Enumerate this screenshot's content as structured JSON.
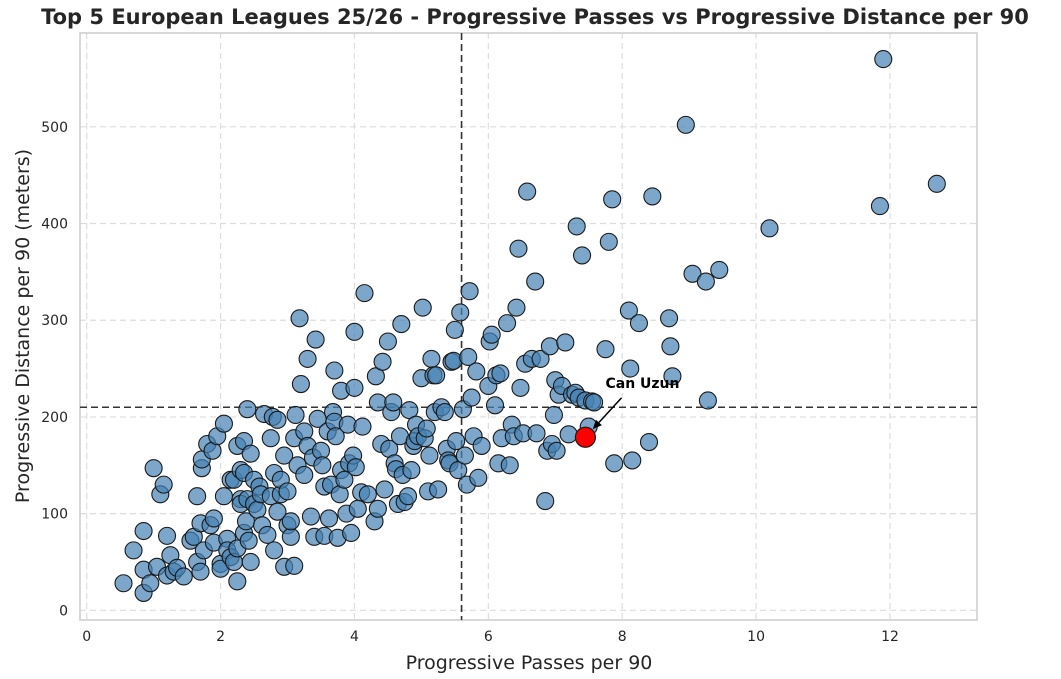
{
  "chart_data": {
    "type": "scatter",
    "title": "Top 5 European Leagues 25/26 - Progressive Passes vs Progressive Distance per 90",
    "xlabel": "Progressive Passes per 90",
    "ylabel": "Progressive Distance per 90 (meters)",
    "xlim": [
      -0.1,
      13.3
    ],
    "ylim": [
      -10,
      597
    ],
    "xticks": [
      0,
      2,
      4,
      6,
      8,
      10,
      12
    ],
    "yticks": [
      0,
      100,
      200,
      300,
      400,
      500
    ],
    "xtick_labels": [
      "0",
      "2",
      "4",
      "6",
      "8",
      "10",
      "12"
    ],
    "ytick_labels": [
      "0",
      "100",
      "200",
      "300",
      "400",
      "500"
    ],
    "grid": true,
    "reference_lines": {
      "x_mean": 5.6,
      "y_mean": 210
    },
    "colors": {
      "points": "#4682b4",
      "point_edge": "#1a1a1a",
      "highlight": "#ff0000",
      "reference": "#333333",
      "grid": "#dddddd"
    },
    "highlight": {
      "label": "Can Uzun",
      "x": 7.45,
      "y": 179,
      "label_x": 7.75,
      "label_y": 230
    },
    "points": [
      [
        0.55,
        28
      ],
      [
        0.7,
        62
      ],
      [
        0.85,
        82
      ],
      [
        0.85,
        42
      ],
      [
        0.85,
        18
      ],
      [
        0.95,
        28
      ],
      [
        1.0,
        147
      ],
      [
        1.05,
        45
      ],
      [
        1.1,
        120
      ],
      [
        1.15,
        130
      ],
      [
        1.2,
        77
      ],
      [
        1.2,
        36
      ],
      [
        1.25,
        57
      ],
      [
        1.3,
        40
      ],
      [
        1.35,
        44
      ],
      [
        1.45,
        35
      ],
      [
        1.55,
        72
      ],
      [
        1.6,
        76
      ],
      [
        1.65,
        50
      ],
      [
        1.65,
        118
      ],
      [
        1.7,
        90
      ],
      [
        1.7,
        40
      ],
      [
        1.72,
        147
      ],
      [
        1.72,
        156
      ],
      [
        1.75,
        62
      ],
      [
        1.8,
        172
      ],
      [
        1.85,
        88
      ],
      [
        1.88,
        165
      ],
      [
        1.9,
        70
      ],
      [
        1.9,
        95
      ],
      [
        1.95,
        180
      ],
      [
        2.0,
        48
      ],
      [
        2.0,
        43
      ],
      [
        2.05,
        118
      ],
      [
        2.05,
        193
      ],
      [
        2.1,
        74
      ],
      [
        2.1,
        62
      ],
      [
        2.15,
        135
      ],
      [
        2.15,
        55
      ],
      [
        2.2,
        50
      ],
      [
        2.2,
        135
      ],
      [
        2.25,
        30
      ],
      [
        2.25,
        64
      ],
      [
        2.25,
        170
      ],
      [
        2.3,
        145
      ],
      [
        2.3,
        115
      ],
      [
        2.3,
        110
      ],
      [
        2.35,
        175
      ],
      [
        2.35,
        142
      ],
      [
        2.35,
        80
      ],
      [
        2.38,
        92
      ],
      [
        2.4,
        208
      ],
      [
        2.4,
        115
      ],
      [
        2.42,
        72
      ],
      [
        2.45,
        162
      ],
      [
        2.45,
        50
      ],
      [
        2.5,
        110
      ],
      [
        2.5,
        135
      ],
      [
        2.55,
        104
      ],
      [
        2.58,
        128
      ],
      [
        2.6,
        120
      ],
      [
        2.62,
        88
      ],
      [
        2.65,
        203
      ],
      [
        2.7,
        78
      ],
      [
        2.75,
        118
      ],
      [
        2.75,
        178
      ],
      [
        2.78,
        200
      ],
      [
        2.8,
        62
      ],
      [
        2.8,
        142
      ],
      [
        2.85,
        197
      ],
      [
        2.85,
        102
      ],
      [
        2.9,
        120
      ],
      [
        2.9,
        135
      ],
      [
        2.95,
        45
      ],
      [
        2.95,
        160
      ],
      [
        3.0,
        88
      ],
      [
        3.0,
        123
      ],
      [
        3.05,
        76
      ],
      [
        3.05,
        92
      ],
      [
        3.1,
        46
      ],
      [
        3.1,
        178
      ],
      [
        3.12,
        202
      ],
      [
        3.15,
        150
      ],
      [
        3.18,
        302
      ],
      [
        3.2,
        234
      ],
      [
        3.25,
        140
      ],
      [
        3.25,
        185
      ],
      [
        3.3,
        260
      ],
      [
        3.3,
        170
      ],
      [
        3.35,
        97
      ],
      [
        3.38,
        158
      ],
      [
        3.4,
        76
      ],
      [
        3.42,
        280
      ],
      [
        3.45,
        198
      ],
      [
        3.5,
        165
      ],
      [
        3.52,
        150
      ],
      [
        3.55,
        128
      ],
      [
        3.55,
        77
      ],
      [
        3.6,
        185
      ],
      [
        3.62,
        95
      ],
      [
        3.65,
        130
      ],
      [
        3.68,
        205
      ],
      [
        3.7,
        248
      ],
      [
        3.7,
        195
      ],
      [
        3.72,
        180
      ],
      [
        3.75,
        75
      ],
      [
        3.78,
        120
      ],
      [
        3.8,
        145
      ],
      [
        3.8,
        227
      ],
      [
        3.85,
        135
      ],
      [
        3.88,
        100
      ],
      [
        3.9,
        192
      ],
      [
        3.92,
        152
      ],
      [
        3.95,
        80
      ],
      [
        3.98,
        160
      ],
      [
        4.0,
        288
      ],
      [
        4.0,
        230
      ],
      [
        4.02,
        148
      ],
      [
        4.05,
        105
      ],
      [
        4.1,
        122
      ],
      [
        4.12,
        190
      ],
      [
        4.15,
        328
      ],
      [
        4.2,
        120
      ],
      [
        4.3,
        92
      ],
      [
        4.32,
        242
      ],
      [
        4.35,
        215
      ],
      [
        4.35,
        105
      ],
      [
        4.4,
        172
      ],
      [
        4.42,
        257
      ],
      [
        4.45,
        125
      ],
      [
        4.5,
        278
      ],
      [
        4.52,
        167
      ],
      [
        4.55,
        205
      ],
      [
        4.58,
        215
      ],
      [
        4.6,
        152
      ],
      [
        4.62,
        146
      ],
      [
        4.65,
        110
      ],
      [
        4.68,
        180
      ],
      [
        4.7,
        296
      ],
      [
        4.72,
        140
      ],
      [
        4.75,
        112
      ],
      [
        4.8,
        118
      ],
      [
        4.82,
        207
      ],
      [
        4.85,
        145
      ],
      [
        4.88,
        170
      ],
      [
        4.9,
        175
      ],
      [
        4.92,
        192
      ],
      [
        4.95,
        180
      ],
      [
        5.0,
        240
      ],
      [
        5.02,
        313
      ],
      [
        5.05,
        178
      ],
      [
        5.08,
        188
      ],
      [
        5.1,
        123
      ],
      [
        5.12,
        160
      ],
      [
        5.15,
        260
      ],
      [
        5.18,
        243
      ],
      [
        5.2,
        205
      ],
      [
        5.22,
        243
      ],
      [
        5.25,
        125
      ],
      [
        5.3,
        210
      ],
      [
        5.35,
        205
      ],
      [
        5.38,
        167
      ],
      [
        5.4,
        155
      ],
      [
        5.42,
        152
      ],
      [
        5.45,
        257
      ],
      [
        5.48,
        258
      ],
      [
        5.5,
        290
      ],
      [
        5.52,
        175
      ],
      [
        5.55,
        145
      ],
      [
        5.58,
        308
      ],
      [
        5.62,
        208
      ],
      [
        5.65,
        160
      ],
      [
        5.68,
        130
      ],
      [
        5.7,
        262
      ],
      [
        5.72,
        330
      ],
      [
        5.75,
        220
      ],
      [
        5.78,
        180
      ],
      [
        5.82,
        247
      ],
      [
        5.85,
        137
      ],
      [
        5.9,
        170
      ],
      [
        6.0,
        232
      ],
      [
        6.02,
        278
      ],
      [
        6.05,
        285
      ],
      [
        6.1,
        212
      ],
      [
        6.12,
        243
      ],
      [
        6.15,
        152
      ],
      [
        6.18,
        245
      ],
      [
        6.2,
        178
      ],
      [
        6.28,
        297
      ],
      [
        6.32,
        150
      ],
      [
        6.35,
        192
      ],
      [
        6.38,
        180
      ],
      [
        6.42,
        313
      ],
      [
        6.45,
        374
      ],
      [
        6.48,
        230
      ],
      [
        6.52,
        183
      ],
      [
        6.55,
        255
      ],
      [
        6.58,
        433
      ],
      [
        6.65,
        260
      ],
      [
        6.7,
        340
      ],
      [
        6.72,
        183
      ],
      [
        6.78,
        260
      ],
      [
        6.85,
        113
      ],
      [
        6.88,
        165
      ],
      [
        6.92,
        273
      ],
      [
        6.95,
        172
      ],
      [
        6.98,
        202
      ],
      [
        7.0,
        238
      ],
      [
        7.02,
        165
      ],
      [
        7.05,
        223
      ],
      [
        7.1,
        232
      ],
      [
        7.15,
        277
      ],
      [
        7.2,
        182
      ],
      [
        7.25,
        223
      ],
      [
        7.3,
        225
      ],
      [
        7.32,
        397
      ],
      [
        7.35,
        220
      ],
      [
        7.4,
        367
      ],
      [
        7.45,
        217
      ],
      [
        7.5,
        190
      ],
      [
        7.55,
        216
      ],
      [
        7.58,
        215
      ],
      [
        7.75,
        270
      ],
      [
        7.8,
        381
      ],
      [
        7.85,
        425
      ],
      [
        7.88,
        152
      ],
      [
        8.1,
        310
      ],
      [
        8.12,
        250
      ],
      [
        8.15,
        155
      ],
      [
        8.25,
        297
      ],
      [
        8.4,
        174
      ],
      [
        8.45,
        428
      ],
      [
        8.7,
        302
      ],
      [
        8.72,
        273
      ],
      [
        8.75,
        242
      ],
      [
        8.95,
        502
      ],
      [
        9.05,
        348
      ],
      [
        9.25,
        340
      ],
      [
        9.28,
        217
      ],
      [
        9.45,
        352
      ],
      [
        10.2,
        395
      ],
      [
        11.85,
        418
      ],
      [
        11.9,
        570
      ],
      [
        12.7,
        441
      ]
    ]
  }
}
